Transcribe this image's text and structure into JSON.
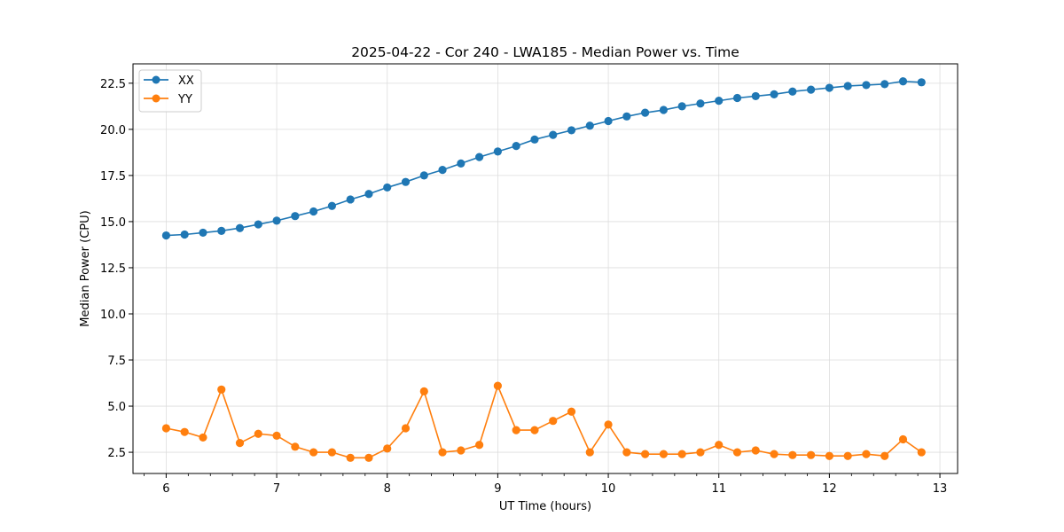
{
  "chart_data": {
    "type": "line",
    "title": "2025-04-22 - Cor 240 - LWA185 - Median Power vs. Time",
    "xlabel": "UT Time (hours)",
    "ylabel": "Median Power (CPU)",
    "xlim": [
      5.7,
      13.16
    ],
    "ylim": [
      1.35,
      23.55
    ],
    "xticks": [
      6,
      7,
      8,
      9,
      10,
      11,
      12,
      13
    ],
    "xtick_labels": [
      "6",
      "7",
      "8",
      "9",
      "10",
      "11",
      "12",
      "13"
    ],
    "yticks": [
      2.5,
      5.0,
      7.5,
      10.0,
      12.5,
      15.0,
      17.5,
      20.0,
      22.5
    ],
    "ytick_labels": [
      "2.5",
      "5.0",
      "7.5",
      "10.0",
      "12.5",
      "15.0",
      "17.5",
      "20.0",
      "22.5"
    ],
    "grid": true,
    "legend_position": "top-left",
    "x": [
      6.0,
      6.1667,
      6.3333,
      6.5,
      6.6667,
      6.8333,
      7.0,
      7.1667,
      7.3333,
      7.5,
      7.6667,
      7.8333,
      8.0,
      8.1667,
      8.3333,
      8.5,
      8.6667,
      8.8333,
      9.0,
      9.1667,
      9.3333,
      9.5,
      9.6667,
      9.8333,
      10.0,
      10.1667,
      10.3333,
      10.5,
      10.6667,
      10.8333,
      11.0,
      11.1667,
      11.3333,
      11.5,
      11.6667,
      11.8333,
      12.0,
      12.1667,
      12.3333,
      12.5,
      12.6667,
      12.8333
    ],
    "series": [
      {
        "name": "XX",
        "color": "#1f77b4",
        "values": [
          14.25,
          14.3,
          14.4,
          14.5,
          14.65,
          14.85,
          15.05,
          15.3,
          15.55,
          15.85,
          16.2,
          16.5,
          16.85,
          17.15,
          17.5,
          17.8,
          18.15,
          18.5,
          18.8,
          19.1,
          19.45,
          19.7,
          19.95,
          20.2,
          20.45,
          20.7,
          20.9,
          21.05,
          21.25,
          21.4,
          21.55,
          21.7,
          21.8,
          21.9,
          22.05,
          22.15,
          22.25,
          22.35,
          22.4,
          22.45,
          22.6,
          22.55
        ]
      },
      {
        "name": "YY",
        "color": "#ff7f0e",
        "values": [
          3.8,
          3.6,
          3.3,
          5.9,
          3.0,
          3.5,
          3.4,
          2.8,
          2.5,
          2.5,
          2.2,
          2.2,
          2.7,
          3.8,
          5.8,
          2.5,
          2.6,
          2.9,
          6.1,
          3.7,
          3.7,
          4.2,
          4.7,
          2.5,
          4.0,
          2.5,
          2.4,
          2.4,
          2.4,
          2.5,
          2.9,
          2.5,
          2.6,
          2.4,
          2.35,
          2.35,
          2.3,
          2.3,
          2.4,
          2.3,
          3.2,
          2.5
        ]
      }
    ]
  }
}
